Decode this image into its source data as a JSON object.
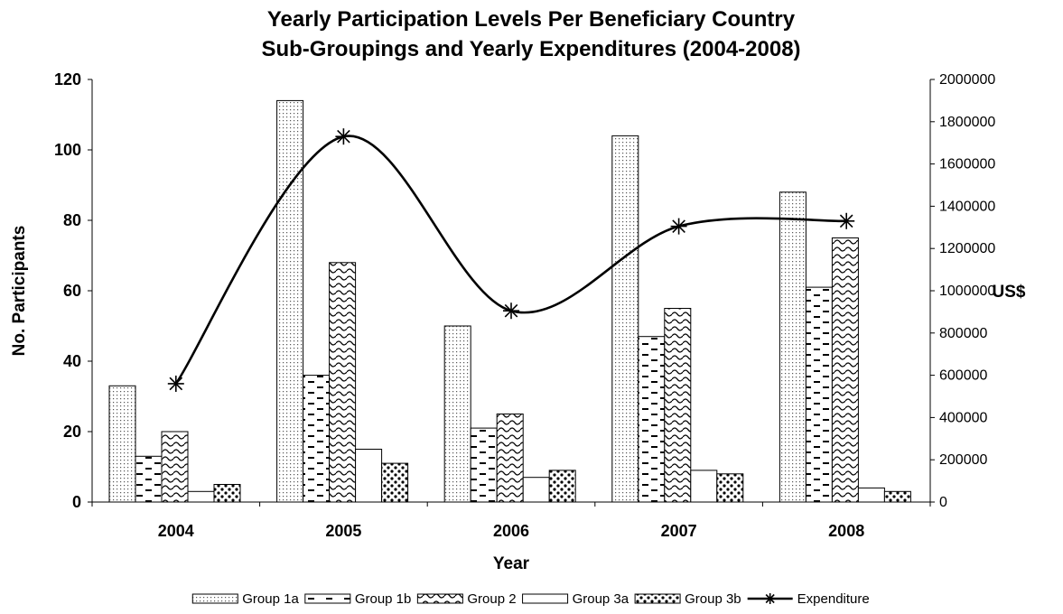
{
  "chart_data": {
    "type": "bar",
    "title_lines": [
      "Yearly Participation Levels Per Beneficiary Country",
      "Sub-Groupings and Yearly Expenditures (2004-2008)"
    ],
    "xlabel": "Year",
    "ylabel": "No. Participants",
    "y2label": "US$",
    "ylim": [
      0,
      120
    ],
    "y2lim": [
      0,
      2000000
    ],
    "yticks": [
      "0",
      "20",
      "40",
      "60",
      "80",
      "100",
      "120"
    ],
    "y2ticks": [
      "0",
      "200000",
      "400000",
      "600000",
      "800000",
      "1000000",
      "1200000",
      "1400000",
      "1600000",
      "1800000",
      "2000000"
    ],
    "categories": [
      "2004",
      "2005",
      "2006",
      "2007",
      "2008"
    ],
    "series": [
      {
        "name": "Group 1a",
        "pattern": "dots",
        "values": [
          33,
          114,
          50,
          104,
          88
        ]
      },
      {
        "name": "Group 1b",
        "pattern": "dashes",
        "values": [
          13,
          36,
          21,
          47,
          61
        ]
      },
      {
        "name": "Group 2",
        "pattern": "waves",
        "values": [
          20,
          68,
          25,
          55,
          75
        ]
      },
      {
        "name": "Group 3a",
        "pattern": "blank",
        "values": [
          3,
          15,
          7,
          9,
          4
        ]
      },
      {
        "name": "Group 3b",
        "pattern": "bigdots",
        "values": [
          5,
          11,
          9,
          8,
          3
        ]
      }
    ],
    "line_series": {
      "name": "Expenditure",
      "axis": "right",
      "marker": "asterisk",
      "smooth": true,
      "values": [
        560000,
        1730000,
        905000,
        1305000,
        1330000
      ]
    },
    "grid": false,
    "legend_position": "bottom"
  }
}
